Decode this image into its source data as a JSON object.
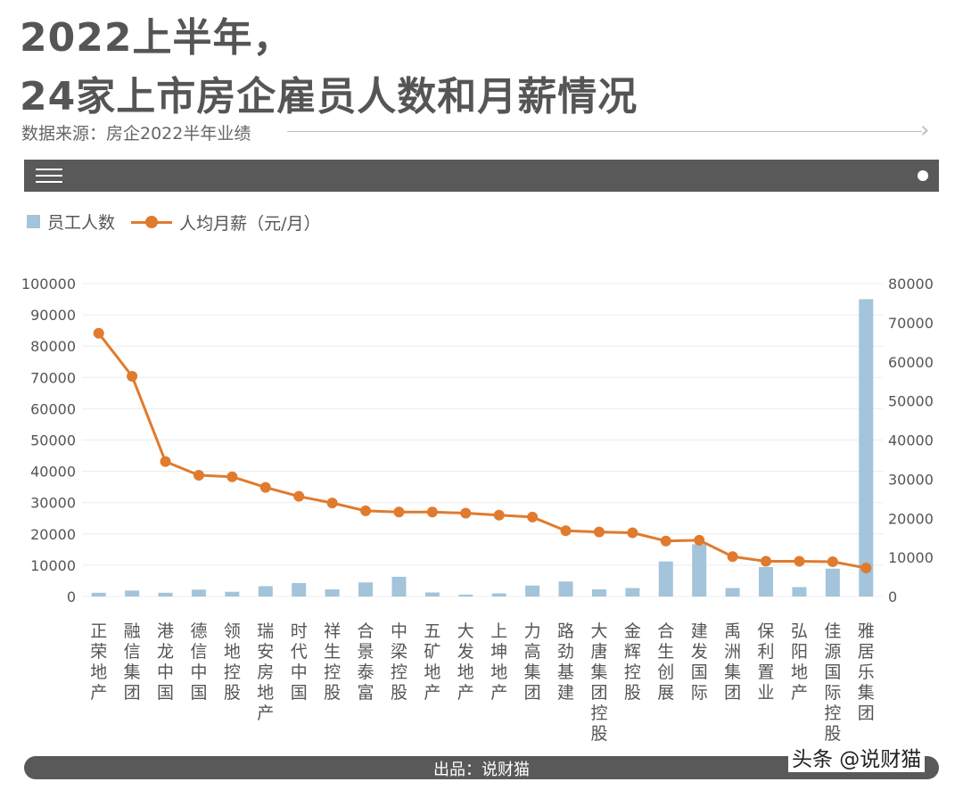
{
  "header": {
    "title_line1": "2022上半年，",
    "title_line2": "24家上市房企雇员人数和月薪情况",
    "source": "数据来源：房企2022半年业绩"
  },
  "footer": {
    "credit": "出品：说财猫",
    "brand": "头条 @说财猫"
  },
  "colors": {
    "bar": "#a3c4da",
    "line": "#e07b2e",
    "header_bar": "#595959"
  },
  "icons": [
    "menu-icon",
    "dot-icon",
    "chevron-right-icon"
  ],
  "chart_data": {
    "type": "bar+line",
    "legend_position": "top-left",
    "grid": true,
    "categories": [
      "正荣地产",
      "融信集团",
      "港龙中国",
      "德信中国",
      "领地控股",
      "瑞安房地产",
      "时代中国",
      "祥生控股",
      "合景泰富",
      "中梁控股",
      "五矿地产",
      "大发地产",
      "上坤地产",
      "力高集团",
      "路劲基建",
      "大唐集团控股",
      "金辉控股",
      "合生创展",
      "建发国际",
      "禹洲集团",
      "保利置业",
      "弘阳地产",
      "佳源国际控股",
      "雅居乐集团"
    ],
    "series": [
      {
        "name": "员工人数",
        "type": "bar",
        "axis": "left",
        "values": [
          1200,
          1900,
          1200,
          2200,
          1500,
          3300,
          4300,
          2300,
          4500,
          6300,
          1300,
          600,
          1000,
          3500,
          4800,
          2300,
          2700,
          11200,
          16700,
          2700,
          9400,
          3000,
          8900,
          95000
        ]
      },
      {
        "name": "人均月薪（元/月）",
        "type": "line",
        "axis": "right",
        "values": [
          67300,
          56300,
          34500,
          31000,
          30600,
          27900,
          25600,
          23900,
          21900,
          21600,
          21600,
          21300,
          20800,
          20300,
          16800,
          16500,
          16300,
          14200,
          14400,
          10200,
          9000,
          9000,
          8900,
          7300
        ]
      }
    ],
    "y_left": {
      "min": 0,
      "max": 100000,
      "ticks": [
        0,
        10000,
        20000,
        30000,
        40000,
        50000,
        60000,
        70000,
        80000,
        90000,
        100000
      ]
    },
    "y_right": {
      "min": 0,
      "max": 80000,
      "ticks": [
        0,
        10000,
        20000,
        30000,
        40000,
        50000,
        60000,
        70000,
        80000
      ]
    }
  }
}
